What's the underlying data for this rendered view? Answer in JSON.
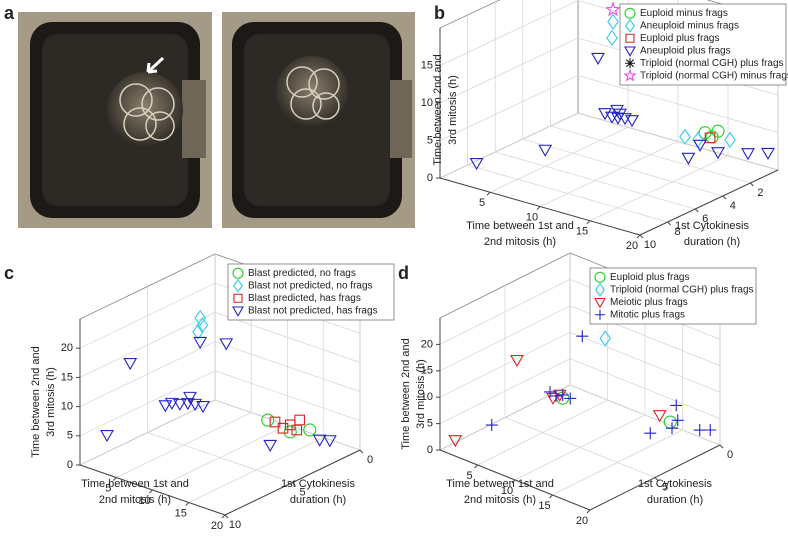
{
  "panel_labels": [
    "a",
    "b",
    "c",
    "d"
  ],
  "chart_data": [
    {
      "type": "scatter3d",
      "xlabel": [
        "Time between 1st and",
        "2nd mitosis (h)"
      ],
      "ylabel": [
        "1st Cytokinesis",
        "duration (h)"
      ],
      "zlabel": [
        "Time between 2nd and",
        "3rd mitosis (h)"
      ],
      "xlim": [
        0,
        20
      ],
      "ylim": [
        0,
        10
      ],
      "zlim": [
        0,
        20
      ],
      "xticks": [
        5,
        10,
        15,
        20
      ],
      "yticks": [
        2,
        4,
        6,
        8,
        10
      ],
      "zticks": [
        0,
        5,
        10,
        15
      ],
      "grid": true,
      "legend": "northeast",
      "series": [
        {
          "name": "Euploid minus frags",
          "color": "#22cc22",
          "marker": "circle",
          "x": [
            12.7,
            13.4,
            14.0
          ],
          "y": [
            0,
            0,
            0
          ],
          "z": [
            2.2,
            1.9,
            2.9
          ]
        },
        {
          "name": "Aneuploid minus frags",
          "color": "#33ccee",
          "marker": "diamond",
          "x": [
            10.7,
            12.0,
            15.2,
            3.5,
            3.4
          ],
          "y": [
            0,
            0,
            0,
            0,
            0
          ],
          "z": [
            0.9,
            1.0,
            2.2,
            13.5,
            11.3
          ]
        },
        {
          "name": "Euploid plus frags",
          "color": "#dd2222",
          "marker": "square",
          "x": [
            13.2
          ],
          "y": [
            0
          ],
          "z": [
            1.7
          ]
        },
        {
          "name": "Aneuploid plus frags",
          "color": "#2222cc",
          "marker": "triangle-down",
          "x": [
            2.7,
            3.4,
            4.0,
            4.7,
            5.4,
            3.9,
            4.2,
            2.0,
            0.9,
            5.0,
            13.8,
            17.0,
            19.0,
            14.0,
            12.2
          ],
          "y": [
            0,
            0,
            0,
            0,
            0,
            0,
            0,
            0,
            8,
            6,
            2,
            0,
            0,
            0,
            0
          ],
          "z": [
            1.0,
            0.8,
            0.9,
            1.1,
            1.1,
            1.9,
            1.5,
            8.1,
            0.6,
            2.2,
            1.0,
            1.1,
            1.9,
            0.1,
            0.4
          ]
        },
        {
          "name": "Triploid (normal CGH) plus frags",
          "color": "#111111",
          "marker": "asterisk",
          "x": [
            5.9
          ],
          "y": [
            0
          ],
          "z": [
            12.0
          ]
        },
        {
          "name": "Triploid (normal CGH) minus frags",
          "color": "#ee44ee",
          "marker": "pentagram",
          "x": [
            3.5
          ],
          "y": [
            0
          ],
          "z": [
            15.1
          ]
        }
      ]
    },
    {
      "type": "scatter3d",
      "xlabel": [
        "Time between 1st and",
        "2nd mitosis (h)"
      ],
      "ylabel": [
        "1st Cytokinesis",
        "duration (h)"
      ],
      "zlabel": [
        "Time between 2nd and",
        "3rd mitosis (h)"
      ],
      "xlim": [
        0,
        20
      ],
      "ylim": [
        0,
        10
      ],
      "zlim": [
        0,
        25
      ],
      "xticks": [
        5,
        10,
        15,
        20
      ],
      "yticks": [
        0,
        5,
        10
      ],
      "zticks": [
        0,
        5,
        10,
        15,
        20
      ],
      "grid": true,
      "legend": "northeast",
      "series": [
        {
          "name": "Blast predicted, no frags",
          "color": "#22cc22",
          "marker": "circle",
          "x": [
            11.0,
            16.8,
            14.1
          ],
          "y": [
            2,
            2,
            2
          ],
          "z": [
            3.5,
            4.3,
            2.8
          ]
        },
        {
          "name": "Blast not predicted, no frags",
          "color": "#33ccee",
          "marker": "diamond",
          "x": [
            5.4,
            5.7,
            5.1
          ],
          "y": [
            4,
            4,
            4
          ],
          "z": [
            20.8,
            19.7,
            18.3
          ]
        },
        {
          "name": "Blast predicted, has frags",
          "color": "#dd2222",
          "marker": "square",
          "x": [
            12.0,
            13.1,
            14.1,
            15.0,
            15.4
          ],
          "y": [
            2,
            2,
            2,
            2,
            2
          ],
          "z": [
            3.6,
            3.0,
            4.0,
            3.5,
            5.4
          ]
        },
        {
          "name": "Blast not predicted, has frags",
          "color": "#2222cc",
          "marker": "triangle-down",
          "x": [
            0.6,
            1.5,
            2.6,
            3.7,
            4.7,
            5.8,
            4.0,
            3.2,
            0,
            9.0,
            5.4,
            13.2,
            16.3,
            17.7
          ],
          "y": [
            4,
            4,
            4,
            4,
            4,
            4,
            4,
            8,
            8,
            4,
            4,
            3,
            1,
            1
          ],
          "z": [
            3.8,
            4.6,
            4.9,
            5.5,
            5.8,
            5.9,
            6.7,
            16.6,
            2.9,
            18.0,
            16.7,
            1.3,
            1.3,
            1.8
          ]
        }
      ]
    },
    {
      "type": "scatter3d",
      "xlabel": [
        "Time between 1st and",
        "2nd mitosis (h)"
      ],
      "ylabel": [
        "1st Cytokinesis",
        "duration (h)"
      ],
      "zlabel": [
        "Time between 2nd and",
        "3rd mitosis (h)"
      ],
      "xlim": [
        0,
        20
      ],
      "ylim": [
        0,
        10
      ],
      "zlim": [
        0,
        25
      ],
      "xticks": [
        5,
        10,
        15,
        20
      ],
      "yticks": [
        0,
        5
      ],
      "zticks": [
        0,
        5,
        10,
        15,
        20
      ],
      "grid": true,
      "legend": "northeast",
      "series": [
        {
          "name": "Euploid plus frags",
          "color": "#22cc22",
          "marker": "circle",
          "x": [
            2.5,
            15.1
          ],
          "y": [
            2,
            1
          ],
          "z": [
            1.4,
            2.8
          ]
        },
        {
          "name": "Triploid (normal CGH) plus frags",
          "color": "#33ccee",
          "marker": "diamond",
          "x": [
            4.7
          ],
          "y": [
            0
          ],
          "z": [
            11.5
          ]
        },
        {
          "name": "Meiotic plus frags",
          "color": "#dd2222",
          "marker": "triangle-down",
          "x": [
            0.3,
            1.6,
            1.2,
            2.1,
            13.7
          ],
          "y": [
            9,
            5,
            2,
            2,
            1
          ],
          "z": [
            0.8,
            11.8,
            0.7,
            1.8,
            3.3
          ]
        },
        {
          "name": "Mitotic plus frags",
          "color": "#2222cc",
          "marker": "plus",
          "x": [
            0.8,
            1.6,
            2.5,
            3.5,
            5.1,
            1.7,
            15.9,
            18.8,
            15.9,
            16.1,
            17.3,
            18.7
          ],
          "y": [
            2,
            2,
            2,
            2,
            2,
            7,
            3,
            3,
            1,
            1,
            0,
            0
          ],
          "z": [
            1.6,
            1.3,
            2.0,
            1.9,
            14.6,
            2.0,
            3.6,
            6.2,
            6.4,
            3.7,
            1.3,
            2.1
          ]
        }
      ]
    }
  ]
}
